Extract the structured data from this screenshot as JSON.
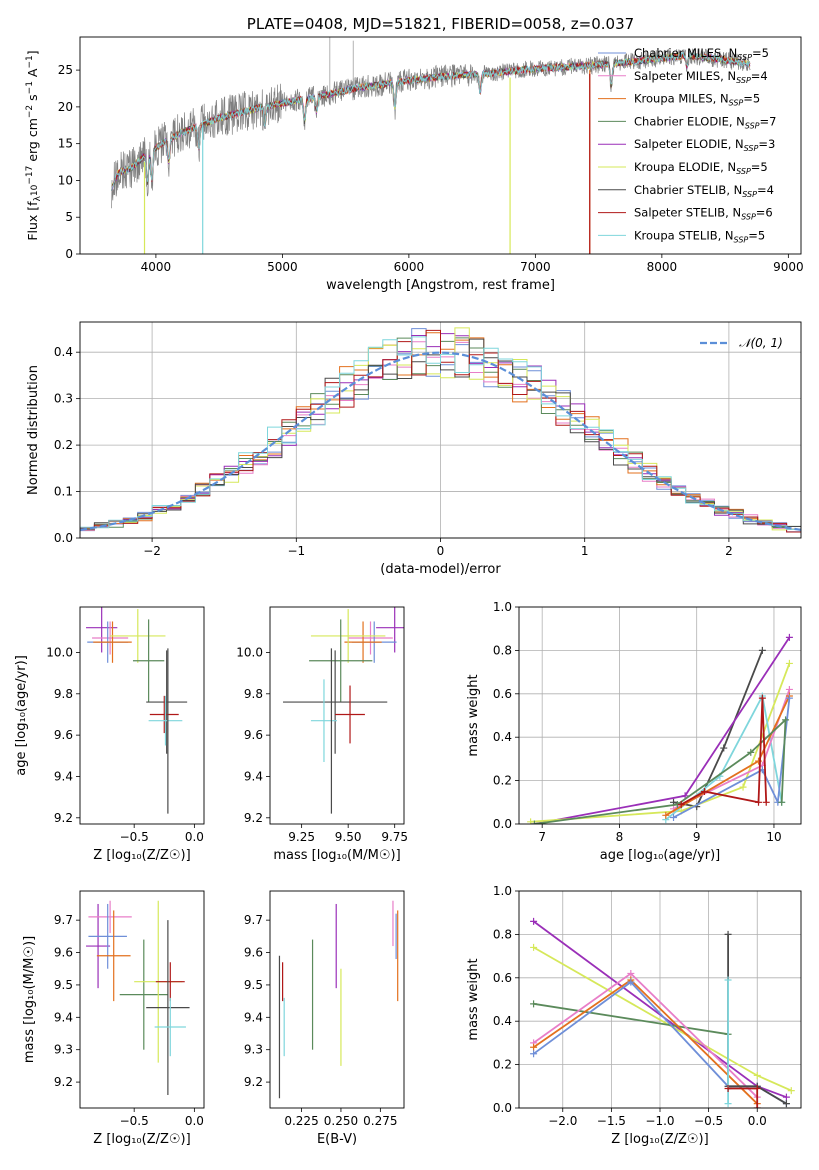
{
  "colors": {
    "chabrier_miles": "#6f8fd8",
    "salpeter_miles": "#e87ec8",
    "kroupa_miles": "#e3701e",
    "chabrier_elodie": "#5b8a5b",
    "salpeter_elodie": "#9a2fb8",
    "kroupa_elodie": "#d6e85a",
    "chabrier_stelib": "#4a4a4a",
    "salpeter_stelib": "#b01818",
    "kroupa_stelib": "#7fd6dc",
    "data_gray": "#808080",
    "gaussian": "#5b8fd8",
    "grid": "#b0b0b0"
  },
  "chart_data": [
    {
      "id": "spectrum",
      "type": "line",
      "title": "PLATE=0408, MJD=51821, FIBERID=0058, z=0.037",
      "xlabel": "wavelength [Angstrom, rest frame]",
      "ylabel_prefix": "Flux [f",
      "ylabel_sub": "λ",
      "ylabel_mid": "10",
      "ylabel_sup1": "−17",
      "ylabel_rest": " erg cm",
      "ylabel_sup2": "−2",
      "ylabel_s": " s",
      "ylabel_sup3": "−1",
      "ylabel_end": " A",
      "ylabel_sup4": "−1",
      "ylabel_close": "]",
      "xlim": [
        3400,
        9100
      ],
      "ylim": [
        0,
        29.5
      ],
      "xticks": [
        4000,
        5000,
        6000,
        7000,
        8000,
        9000
      ],
      "yticks": [
        0,
        5,
        10,
        15,
        20,
        25
      ],
      "grid": false,
      "legend_position": "top-right",
      "continuum_anchors": [
        [
          3650,
          9.0
        ],
        [
          3700,
          11.0
        ],
        [
          3800,
          11.6
        ],
        [
          3950,
          14.0
        ],
        [
          4000,
          14.5
        ],
        [
          4200,
          16.5
        ],
        [
          4500,
          18.5
        ],
        [
          4800,
          19.8
        ],
        [
          5000,
          20.5
        ],
        [
          5300,
          21.5
        ],
        [
          5600,
          22.6
        ],
        [
          6000,
          23.6
        ],
        [
          6300,
          24.2
        ],
        [
          6600,
          24.5
        ],
        [
          7000,
          25.2
        ],
        [
          7400,
          25.6
        ],
        [
          7800,
          26.2
        ],
        [
          8200,
          27.0
        ],
        [
          8500,
          26.4
        ],
        [
          8700,
          25.8
        ]
      ],
      "series": [
        {
          "name": "Chabrier MILES",
          "key": "chabrier_miles",
          "nssp": "5"
        },
        {
          "name": "Salpeter MILES",
          "key": "salpeter_miles",
          "nssp": "4"
        },
        {
          "name": "Kroupa MILES",
          "key": "kroupa_miles",
          "nssp": "5"
        },
        {
          "name": "Chabrier ELODIE",
          "key": "chabrier_elodie",
          "nssp": "7"
        },
        {
          "name": "Salpeter ELODIE",
          "key": "salpeter_elodie",
          "nssp": "3"
        },
        {
          "name": "Kroupa ELODIE",
          "key": "kroupa_elodie",
          "nssp": "5"
        },
        {
          "name": "Chabrier STELIB",
          "key": "chabrier_stelib",
          "nssp": "4"
        },
        {
          "name": "Salpeter STELIB",
          "key": "salpeter_stelib",
          "nssp": "6"
        },
        {
          "name": "Kroupa STELIB",
          "key": "kroupa_stelib",
          "nssp": "5"
        }
      ],
      "legend_sub": "SSP",
      "drops": [
        {
          "key": "kroupa_stelib",
          "x": 4370,
          "from": 17.5
        },
        {
          "key": "kroupa_elodie",
          "x": 3910,
          "from": 12.5
        },
        {
          "key": "kroupa_elodie",
          "x": 6800,
          "from": 24.0
        },
        {
          "key": "kroupa_miles",
          "x": 7430,
          "from": 25.0
        },
        {
          "key": "salpeter_stelib",
          "x": 7430,
          "from": 24.5
        }
      ],
      "spikes": [
        {
          "x": 5375,
          "to": 29.5
        },
        {
          "x": 5560,
          "to": 29.0
        }
      ]
    },
    {
      "id": "residuals",
      "type": "histogram",
      "xlabel": "(data-model)/error",
      "ylabel": "Normed distribution",
      "xlim": [
        -2.5,
        2.5
      ],
      "ylim": [
        0,
        0.465
      ],
      "xticks": [
        -2,
        -1,
        0,
        1,
        2
      ],
      "xticklabels": [
        "−2",
        "−1",
        "0",
        "1",
        "2"
      ],
      "yticks": [
        0.0,
        0.1,
        0.2,
        0.3,
        0.4
      ],
      "yticklabels": [
        "0.0",
        "0.1",
        "0.2",
        "0.3",
        "0.4"
      ],
      "grid": true,
      "bin_width": 0.1,
      "legend_label": "𝒩(0, 1)",
      "legend_position": "top-right"
    },
    {
      "id": "age_vs_z",
      "type": "errorbar",
      "xlabel": "Z [log₁₀(Z/Z☉)]",
      "ylabel": "age  [log₁₀(age/yr)]",
      "xlim": [
        -0.95,
        0.08
      ],
      "ylim": [
        9.17,
        10.22
      ],
      "xticks": [
        -0.5,
        0.0
      ],
      "xticklabels": [
        "−0.5",
        "0.0"
      ],
      "yticks": [
        9.2,
        9.4,
        9.6,
        9.8,
        10.0
      ],
      "yticklabels": [
        "9.2",
        "9.4",
        "9.6",
        "9.8",
        "10.0"
      ],
      "points": [
        {
          "key": "salpeter_elodie",
          "x": -0.77,
          "xerr": 0.13,
          "y": 10.12,
          "yerr": 0.12
        },
        {
          "key": "salpeter_miles",
          "x": -0.7,
          "xerr": 0.15,
          "y": 10.07,
          "yerr": 0.08
        },
        {
          "key": "chabrier_miles",
          "x": -0.72,
          "xerr": 0.17,
          "y": 10.05,
          "yerr": 0.1
        },
        {
          "key": "kroupa_miles",
          "x": -0.68,
          "xerr": 0.16,
          "y": 10.05,
          "yerr": 0.1
        },
        {
          "key": "kroupa_elodie",
          "x": -0.47,
          "xerr": 0.23,
          "y": 10.08,
          "yerr": 0.13
        },
        {
          "key": "chabrier_elodie",
          "x": -0.38,
          "xerr": 0.13,
          "y": 9.96,
          "yerr": 0.2
        },
        {
          "key": "chabrier_stelib",
          "x": -0.23,
          "xerr": 0.17,
          "y": 9.76,
          "yerr": 0.25
        },
        {
          "key": "salpeter_stelib",
          "x": -0.25,
          "xerr": 0.12,
          "y": 9.7,
          "yerr": 0.09
        },
        {
          "key": "kroupa_stelib",
          "x": -0.24,
          "xerr": 0.14,
          "y": 9.67,
          "yerr": 0.12
        },
        {
          "key": "chabrier_stelib",
          "x": -0.22,
          "xerr": 0.0,
          "y": 9.62,
          "yerr": 0.4
        }
      ]
    },
    {
      "id": "age_vs_mass",
      "type": "errorbar",
      "xlabel": "mass [log₁₀(M/M☉)]",
      "xlim": [
        9.08,
        9.8
      ],
      "ylim": [
        9.17,
        10.22
      ],
      "xticks": [
        9.25,
        9.5,
        9.75
      ],
      "xticklabels": [
        "9.25",
        "9.50",
        "9.75"
      ],
      "yticks": [
        9.2,
        9.4,
        9.6,
        9.8,
        10.0
      ],
      "yticklabels": [
        "9.2",
        "9.4",
        "9.6",
        "9.8",
        "10.0"
      ],
      "points": [
        {
          "key": "salpeter_elodie",
          "x": 9.75,
          "xerr": 0.1,
          "y": 10.12,
          "yerr": 0.12
        },
        {
          "key": "salpeter_miles",
          "x": 9.62,
          "xerr": 0.12,
          "y": 10.07,
          "yerr": 0.08
        },
        {
          "key": "chabrier_miles",
          "x": 9.64,
          "xerr": 0.12,
          "y": 10.05,
          "yerr": 0.1
        },
        {
          "key": "kroupa_miles",
          "x": 9.58,
          "xerr": 0.1,
          "y": 10.05,
          "yerr": 0.1
        },
        {
          "key": "kroupa_elodie",
          "x": 9.5,
          "xerr": 0.2,
          "y": 10.08,
          "yerr": 0.13
        },
        {
          "key": "chabrier_elodie",
          "x": 9.46,
          "xerr": 0.17,
          "y": 9.96,
          "yerr": 0.2
        },
        {
          "key": "chabrier_stelib",
          "x": 9.43,
          "xerr": 0.28,
          "y": 9.76,
          "yerr": 0.25
        },
        {
          "key": "salpeter_stelib",
          "x": 9.51,
          "xerr": 0.08,
          "y": 9.7,
          "yerr": 0.14
        },
        {
          "key": "kroupa_stelib",
          "x": 9.37,
          "xerr": 0.07,
          "y": 9.67,
          "yerr": 0.2
        },
        {
          "key": "chabrier_stelib",
          "x": 9.41,
          "xerr": 0.0,
          "y": 9.62,
          "yerr": 0.4
        }
      ]
    },
    {
      "id": "weight_vs_age",
      "type": "line",
      "xlabel": "age  [log₁₀(age/yr)]",
      "ylabel": "mass weight",
      "xlim": [
        6.7,
        10.35
      ],
      "ylim": [
        0,
        1.0
      ],
      "xticks": [
        7,
        8,
        9,
        10
      ],
      "yticks": [
        0.0,
        0.2,
        0.4,
        0.6,
        0.8,
        1.0
      ],
      "yticklabels": [
        "0.0",
        "0.2",
        "0.4",
        "0.6",
        "0.8",
        "1.0"
      ],
      "grid": true,
      "series": [
        {
          "key": "chabrier_stelib",
          "points": [
            [
              8.7,
              0.1
            ],
            [
              9.0,
              0.08
            ],
            [
              9.35,
              0.35
            ],
            [
              9.85,
              0.8
            ]
          ]
        },
        {
          "key": "salpeter_elodie",
          "points": [
            [
              6.9,
              0.0
            ],
            [
              8.85,
              0.13
            ],
            [
              10.2,
              0.86
            ]
          ]
        },
        {
          "key": "kroupa_elodie",
          "points": [
            [
              6.85,
              0.01
            ],
            [
              8.8,
              0.06
            ],
            [
              9.6,
              0.17
            ],
            [
              10.2,
              0.74
            ]
          ]
        },
        {
          "key": "kroupa_stelib",
          "points": [
            [
              8.6,
              0.02
            ],
            [
              9.3,
              0.22
            ],
            [
              9.85,
              0.59
            ],
            [
              10.1,
              0.1
            ]
          ]
        },
        {
          "key": "salpeter_miles",
          "points": [
            [
              8.7,
              0.07
            ],
            [
              9.85,
              0.27
            ],
            [
              10.2,
              0.62
            ]
          ]
        },
        {
          "key": "kroupa_miles",
          "points": [
            [
              8.6,
              0.04
            ],
            [
              9.8,
              0.29
            ],
            [
              10.2,
              0.59
            ]
          ]
        },
        {
          "key": "chabrier_miles",
          "points": [
            [
              8.7,
              0.03
            ],
            [
              9.85,
              0.25
            ],
            [
              10.05,
              0.1
            ],
            [
              10.2,
              0.58
            ]
          ]
        },
        {
          "key": "chabrier_elodie",
          "points": [
            [
              6.9,
              0.0
            ],
            [
              8.75,
              0.09
            ],
            [
              9.7,
              0.33
            ],
            [
              10.15,
              0.48
            ],
            [
              10.1,
              0.1
            ]
          ]
        },
        {
          "key": "salpeter_stelib",
          "points": [
            [
              8.8,
              0.09
            ],
            [
              9.1,
              0.15
            ],
            [
              9.8,
              0.1
            ],
            [
              9.85,
              0.58
            ],
            [
              9.9,
              0.1
            ]
          ]
        }
      ]
    },
    {
      "id": "mass_vs_z",
      "type": "errorbar",
      "xlabel": "Z [log₁₀(Z/Z☉)]",
      "ylabel": "mass [log₁₀(M/M☉)]",
      "xlim": [
        -0.95,
        0.08
      ],
      "ylim": [
        9.12,
        9.79
      ],
      "xticks": [
        -0.5,
        0.0
      ],
      "xticklabels": [
        "−0.5",
        "0.0"
      ],
      "yticks": [
        9.2,
        9.3,
        9.4,
        9.5,
        9.6,
        9.7
      ],
      "yticklabels": [
        "9.2",
        "9.3",
        "9.4",
        "9.5",
        "9.6",
        "9.7"
      ],
      "points": [
        {
          "key": "salpeter_elodie",
          "x": -0.8,
          "xerr": 0.1,
          "y": 9.62,
          "yerr": 0.13
        },
        {
          "key": "salpeter_miles",
          "x": -0.7,
          "xerr": 0.18,
          "y": 9.71,
          "yerr": 0.05
        },
        {
          "key": "chabrier_miles",
          "x": -0.72,
          "xerr": 0.16,
          "y": 9.65,
          "yerr": 0.1
        },
        {
          "key": "kroupa_miles",
          "x": -0.67,
          "xerr": 0.14,
          "y": 9.59,
          "yerr": 0.14
        },
        {
          "key": "chabrier_elodie",
          "x": -0.42,
          "xerr": 0.2,
          "y": 9.47,
          "yerr": 0.17
        },
        {
          "key": "kroupa_elodie",
          "x": -0.3,
          "xerr": 0.2,
          "y": 9.51,
          "yerr": 0.25
        },
        {
          "key": "salpeter_stelib",
          "x": -0.2,
          "xerr": 0.12,
          "y": 9.51,
          "yerr": 0.06
        },
        {
          "key": "chabrier_stelib",
          "x": -0.22,
          "xerr": 0.18,
          "y": 9.43,
          "yerr": 0.27
        },
        {
          "key": "kroupa_stelib",
          "x": -0.2,
          "xerr": 0.13,
          "y": 9.37,
          "yerr": 0.09
        }
      ]
    },
    {
      "id": "mass_vs_ebv",
      "type": "errorbar",
      "xlabel": "E(B-V)",
      "xlim": [
        0.205,
        0.29
      ],
      "ylim": [
        9.12,
        9.79
      ],
      "xticks": [
        0.225,
        0.25,
        0.275
      ],
      "xticklabels": [
        "0.225",
        "0.250",
        "0.275"
      ],
      "yticks": [
        9.2,
        9.3,
        9.4,
        9.5,
        9.6,
        9.7
      ],
      "yticklabels": [
        "9.2",
        "9.3",
        "9.4",
        "9.5",
        "9.6",
        "9.7"
      ],
      "points": [
        {
          "key": "chabrier_stelib",
          "x": 0.211,
          "xerr": 0.0,
          "y": 9.37,
          "yerr": 0.22
        },
        {
          "key": "salpeter_stelib",
          "x": 0.213,
          "xerr": 0.0,
          "y": 9.51,
          "yerr": 0.06
        },
        {
          "key": "kroupa_stelib",
          "x": 0.214,
          "xerr": 0.0,
          "y": 9.37,
          "yerr": 0.09
        },
        {
          "key": "chabrier_elodie",
          "x": 0.232,
          "xerr": 0.0,
          "y": 9.47,
          "yerr": 0.17
        },
        {
          "key": "salpeter_elodie",
          "x": 0.247,
          "xerr": 0.0,
          "y": 9.62,
          "yerr": 0.13
        },
        {
          "key": "kroupa_elodie",
          "x": 0.25,
          "xerr": 0.0,
          "y": 9.4,
          "yerr": 0.15
        },
        {
          "key": "salpeter_miles",
          "x": 0.283,
          "xerr": 0.0,
          "y": 9.69,
          "yerr": 0.07
        },
        {
          "key": "chabrier_miles",
          "x": 0.285,
          "xerr": 0.0,
          "y": 9.65,
          "yerr": 0.07
        },
        {
          "key": "kroupa_miles",
          "x": 0.286,
          "xerr": 0.0,
          "y": 9.59,
          "yerr": 0.14
        }
      ]
    },
    {
      "id": "weight_vs_z",
      "type": "line",
      "xlabel": "Z [log₁₀(Z/Z☉)]",
      "ylabel": "mass weight",
      "xlim": [
        -2.45,
        0.45
      ],
      "ylim": [
        0,
        1.0
      ],
      "xticks": [
        -2.0,
        -1.5,
        -1.0,
        -0.5,
        0.0
      ],
      "xticklabels": [
        "−2.0",
        "−1.5",
        "−1.0",
        "−0.5",
        "0.0"
      ],
      "yticks": [
        0.0,
        0.2,
        0.4,
        0.6,
        0.8,
        1.0
      ],
      "yticklabels": [
        "0.0",
        "0.2",
        "0.4",
        "0.6",
        "0.8",
        "1.0"
      ],
      "grid": true,
      "series": [
        {
          "key": "salpeter_elodie",
          "points": [
            [
              -2.3,
              0.86
            ],
            [
              0.0,
              0.1
            ],
            [
              0.3,
              0.05
            ]
          ]
        },
        {
          "key": "kroupa_elodie",
          "points": [
            [
              -2.3,
              0.74
            ],
            [
              0.0,
              0.15
            ],
            [
              0.35,
              0.08
            ]
          ]
        },
        {
          "key": "chabrier_elodie",
          "points": [
            [
              -2.3,
              0.48
            ],
            [
              -0.3,
              0.34
            ]
          ]
        },
        {
          "key": "salpeter_miles",
          "points": [
            [
              -2.3,
              0.3
            ],
            [
              -1.3,
              0.62
            ],
            [
              0.0,
              0.05
            ]
          ]
        },
        {
          "key": "kroupa_miles",
          "points": [
            [
              -2.3,
              0.28
            ],
            [
              -1.3,
              0.59
            ],
            [
              0.0,
              0.02
            ]
          ]
        },
        {
          "key": "chabrier_miles",
          "points": [
            [
              -2.3,
              0.25
            ],
            [
              -1.3,
              0.58
            ],
            [
              -0.3,
              0.1
            ],
            [
              0.0,
              0.1
            ],
            [
              0.3,
              0.02
            ]
          ]
        },
        {
          "key": "chabrier_stelib",
          "points": [
            [
              -0.3,
              0.8
            ],
            [
              -0.3,
              0.1
            ],
            [
              0.0,
              0.1
            ],
            [
              0.3,
              0.02
            ]
          ]
        },
        {
          "key": "kroupa_stelib",
          "points": [
            [
              -0.3,
              0.59
            ],
            [
              -0.3,
              0.02
            ]
          ]
        },
        {
          "key": "salpeter_stelib",
          "points": [
            [
              -0.3,
              0.09
            ],
            [
              0.0,
              0.09
            ],
            [
              0.0,
              0.0
            ]
          ]
        }
      ]
    }
  ]
}
